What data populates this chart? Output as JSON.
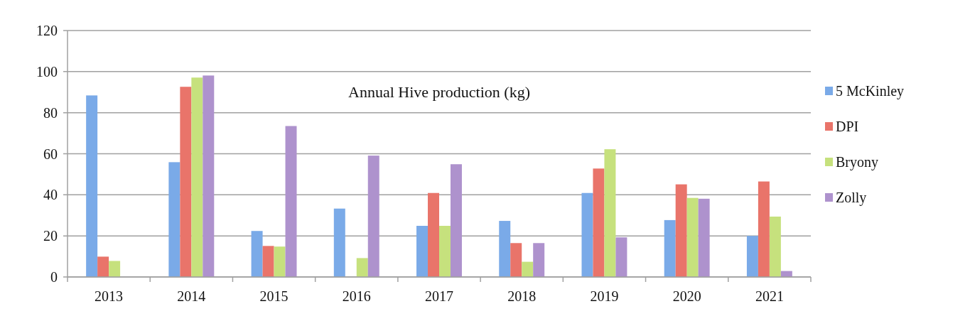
{
  "chart_data": {
    "type": "bar",
    "title": "Annual Hive production (kg)",
    "categories": [
      "2013",
      "2014",
      "2015",
      "2016",
      "2017",
      "2018",
      "2019",
      "2020",
      "2021"
    ],
    "series": [
      {
        "name": "5 McKinley",
        "color": "#7aaae8",
        "values": [
          88.4,
          55.9,
          22.4,
          33.3,
          24.9,
          27.3,
          40.9,
          27.7,
          20
        ]
      },
      {
        "name": "DPI",
        "color": "#e9746a",
        "values": [
          9.9,
          92.6,
          15.1,
          null,
          40.9,
          16.5,
          52.8,
          45.1,
          46.5
        ]
      },
      {
        "name": "Bryony",
        "color": "#c6e17d",
        "values": [
          7.8,
          97.1,
          14.8,
          9.2,
          24.9,
          7.4,
          62.2,
          38.5,
          29.4
        ]
      },
      {
        "name": "Zolly",
        "color": "#ae92cd",
        "values": [
          null,
          98.1,
          73.5,
          59.1,
          54.9,
          16.5,
          19.3,
          38.1,
          2.9
        ]
      }
    ],
    "ylim": [
      0,
      120
    ],
    "yticks": [
      0,
      20,
      40,
      60,
      80,
      100,
      120
    ],
    "grid": "y",
    "legend": "right"
  }
}
